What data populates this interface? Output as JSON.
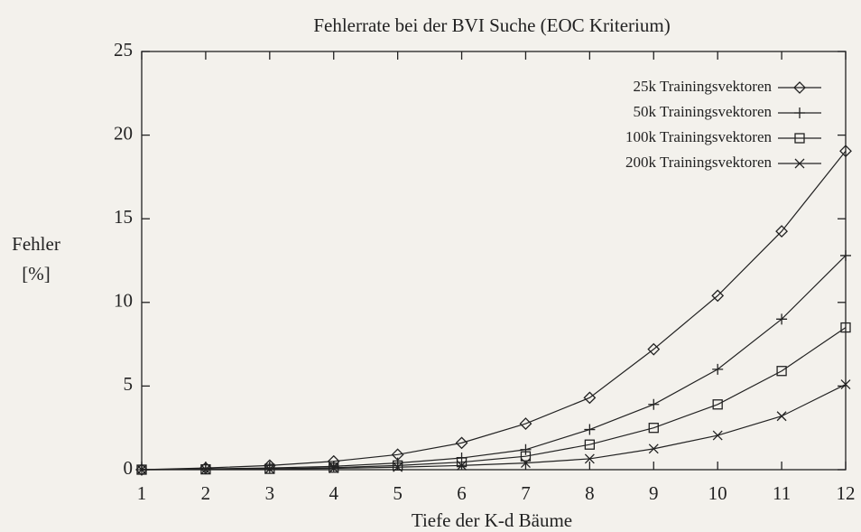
{
  "chart_data": {
    "type": "line",
    "title": "Fehlerrate bei der BVI Suche (EOC Kriterium)",
    "x_label": "Tiefe der K-d Bäume",
    "y_label": [
      "Fehler",
      "[%]"
    ],
    "x": [
      1,
      2,
      3,
      4,
      5,
      6,
      7,
      8,
      9,
      10,
      11,
      12
    ],
    "series": [
      {
        "name": "25k Trainingsvektoren",
        "color": "#222222",
        "marker": "diamond",
        "values": [
          0,
          0.1,
          0.25,
          0.5,
          0.9,
          1.6,
          2.75,
          4.3,
          7.2,
          10.4,
          14.25,
          19.05
        ]
      },
      {
        "name": "50k Trainingsvektoren",
        "color": "#222222",
        "marker": "plus",
        "values": [
          0,
          0.05,
          0.1,
          0.2,
          0.4,
          0.7,
          1.2,
          2.4,
          3.9,
          6.0,
          9.0,
          12.8
        ]
      },
      {
        "name": "100k Trainingsvektoren",
        "color": "#222222",
        "marker": "square",
        "values": [
          0,
          0.02,
          0.05,
          0.12,
          0.25,
          0.45,
          0.8,
          1.5,
          2.5,
          3.9,
          5.9,
          8.5
        ]
      },
      {
        "name": "200k Trainingsvektoren",
        "color": "#222222",
        "marker": "cross",
        "values": [
          0,
          0.01,
          0.04,
          0.08,
          0.15,
          0.25,
          0.4,
          0.65,
          1.25,
          2.05,
          3.2,
          5.1
        ]
      }
    ],
    "xlim": [
      1,
      12
    ],
    "xticks": [
      1,
      2,
      3,
      4,
      5,
      6,
      7,
      8,
      9,
      10,
      11,
      12
    ],
    "ylim": [
      0,
      25
    ],
    "yticks": [
      0,
      5,
      10,
      15,
      20,
      25
    ],
    "legend": "top-right",
    "grid": false
  }
}
